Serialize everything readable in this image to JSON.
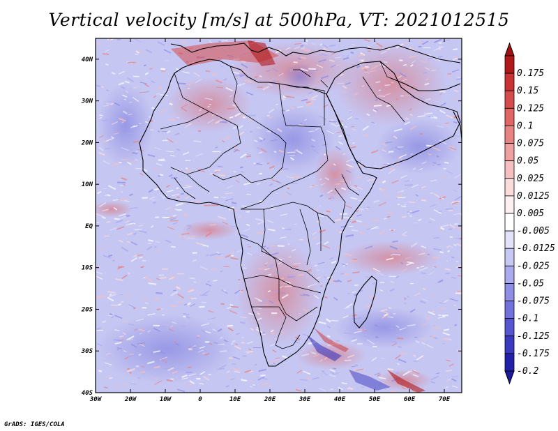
{
  "title": "Vertical velocity [m/s] at 500hPa, VT: 2021012515",
  "credit": "GrADS: IGES/COLA",
  "map": {
    "lon_range": [
      -30,
      75
    ],
    "lat_range": [
      -40,
      45
    ],
    "x_ticks": [
      {
        "lon": -30,
        "label": "30W"
      },
      {
        "lon": -20,
        "label": "20W"
      },
      {
        "lon": -10,
        "label": "10W"
      },
      {
        "lon": 0,
        "label": "0"
      },
      {
        "lon": 10,
        "label": "10E"
      },
      {
        "lon": 20,
        "label": "20E"
      },
      {
        "lon": 30,
        "label": "30E"
      },
      {
        "lon": 40,
        "label": "40E"
      },
      {
        "lon": 50,
        "label": "50E"
      },
      {
        "lon": 60,
        "label": "60E"
      },
      {
        "lon": 70,
        "label": "70E"
      }
    ],
    "y_ticks": [
      {
        "lat": 40,
        "label": "40N"
      },
      {
        "lat": 30,
        "label": "30N"
      },
      {
        "lat": 20,
        "label": "20N"
      },
      {
        "lat": 10,
        "label": "10N"
      },
      {
        "lat": 0,
        "label": "EQ"
      },
      {
        "lat": -10,
        "label": "10S"
      },
      {
        "lat": -20,
        "label": "20S"
      },
      {
        "lat": -30,
        "label": "30S"
      },
      {
        "lat": -40,
        "label": "40S"
      }
    ]
  },
  "colorbar": {
    "bins": [
      {
        "label": "0.175",
        "color": "#b01919"
      },
      {
        "label": "0.15",
        "color": "#c93333"
      },
      {
        "label": "0.125",
        "color": "#d64c4c"
      },
      {
        "label": "0.1",
        "color": "#e06666"
      },
      {
        "label": "0.075",
        "color": "#e88383"
      },
      {
        "label": "0.05",
        "color": "#f0a0a0"
      },
      {
        "label": "0.025",
        "color": "#f6c0c0"
      },
      {
        "label": "0.0125",
        "color": "#fadcdc"
      },
      {
        "label": "0.005",
        "color": "#fdf0f0"
      },
      {
        "label": "-0.005",
        "color": "#ffffff"
      },
      {
        "label": "-0.0125",
        "color": "#e2e2fb"
      },
      {
        "label": "-0.025",
        "color": "#c8c8f5"
      },
      {
        "label": "-0.05",
        "color": "#aaaaee"
      },
      {
        "label": "-0.075",
        "color": "#8e8ee6"
      },
      {
        "label": "-0.1",
        "color": "#7272dc"
      },
      {
        "label": "-0.125",
        "color": "#5656d0"
      },
      {
        "label": "-0.175",
        "color": "#3a3ac0"
      },
      {
        "label": "-0.2",
        "color": "#2020a8"
      }
    ],
    "top_arrow_color": "#a01010",
    "bottom_arrow_color": "#1a1a9a"
  }
}
